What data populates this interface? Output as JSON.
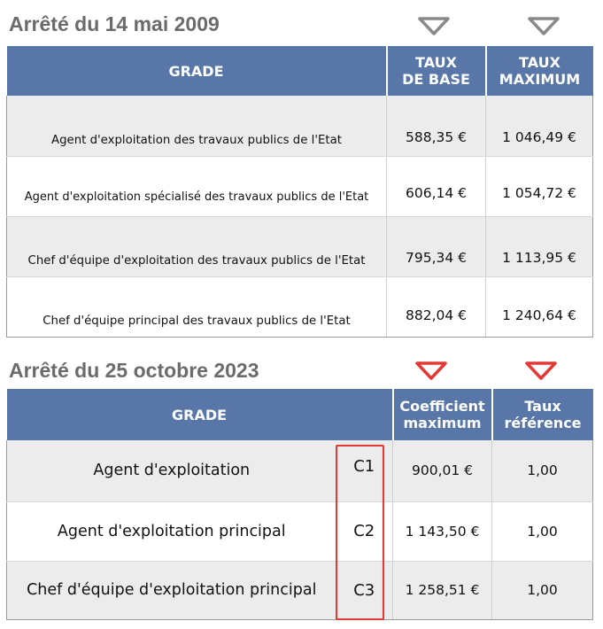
{
  "section1": {
    "title": "Arrêté du 14 mai 2009",
    "headers": [
      "GRADE",
      "TAUX\nDE BASE",
      "TAUX\nMAXIMUM"
    ],
    "rows": [
      {
        "grade": "Agent d'exploitation des travaux publics de l'Etat",
        "base": "588,35 €",
        "max": "1 046,49 €"
      },
      {
        "grade": "Agent d'exploitation spécialisé des travaux publics de l'Etat",
        "base": "606,14 €",
        "max": "1 054,72 €"
      },
      {
        "grade": "Chef d'équipe d'exploitation des travaux publics de l'Etat",
        "base": "795,34 €",
        "max": "1 113,95 €"
      },
      {
        "grade": "Chef d'équipe principal des travaux publics de l'Etat",
        "base": "882,04 €",
        "max": "1 240,64 €"
      }
    ],
    "marker_color": "#8a8a8a"
  },
  "section2": {
    "title": "Arrêté du 25 octobre 2023",
    "headers": [
      "GRADE",
      "Coefficient\nmaximum",
      "Taux\nréférence"
    ],
    "rows": [
      {
        "grade": "Agent d'exploitation",
        "code": "C1",
        "coef": "900,01 €",
        "taux": "1,00"
      },
      {
        "grade": "Agent d'exploitation principal",
        "code": "C2",
        "coef": "1 143,50 €",
        "taux": "1,00"
      },
      {
        "grade": "Chef d'équipe d'exploitation principal",
        "code": "C3",
        "coef": "1 258,51 €",
        "taux": "1,00"
      }
    ],
    "marker_color": "#e53935"
  },
  "colors": {
    "header_bg": "#5876a8",
    "row_alt": "#ececec",
    "highlight": "#e53935"
  }
}
